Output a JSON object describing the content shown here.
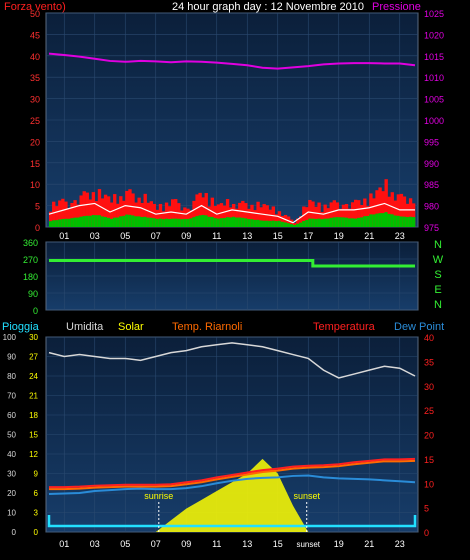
{
  "header": {
    "left_label": "Forza vento)",
    "title": "24 hour graph day : 12 Novembre 2010",
    "right_label": "Pressione"
  },
  "colors": {
    "bg": "#000000",
    "plot_bg_top": "#0b1f3a",
    "plot_bg_bottom": "#163a66",
    "grid": "#2b4a70",
    "wind_red": "#ff1010",
    "wind_green": "#00c000",
    "wind_white": "#ffffff",
    "pressure": "#e000e0",
    "direction": "#33ee33",
    "humidity": "#d8d8d8",
    "solar": "#ffff00",
    "temp_riarnoli": "#ff6a00",
    "temperatura": "#ff2020",
    "dew_point": "#2a8cd8",
    "pioggia": "#22e0ff"
  },
  "time_ticks": [
    "01",
    "03",
    "05",
    "07",
    "09",
    "11",
    "13",
    "15",
    "17",
    "19",
    "21",
    "23"
  ],
  "time_ticks_bottom": [
    "01",
    "03",
    "05",
    "07",
    "09",
    "11",
    "13",
    "15",
    "sunset",
    "19",
    "21",
    "23"
  ],
  "chart_data": [
    {
      "id": "wind_pressure",
      "type": "area",
      "left_axis": {
        "ylim": [
          0,
          50
        ],
        "ticks": [
          "0",
          "5",
          "10",
          "15",
          "20",
          "25",
          "30",
          "35",
          "40",
          "45",
          "50"
        ]
      },
      "right_axis": {
        "ylim": [
          975,
          1025
        ],
        "ticks": [
          "975",
          "980",
          "985",
          "990",
          "995",
          "1000",
          "1005",
          "1010",
          "1015",
          "1020",
          "1025"
        ]
      },
      "x": [
        0,
        1,
        2,
        3,
        4,
        5,
        6,
        7,
        8,
        9,
        10,
        11,
        12,
        13,
        14,
        15,
        16,
        17,
        18,
        19,
        20,
        21,
        22,
        23,
        24
      ],
      "series": [
        {
          "name": "Pressione",
          "axis": "right",
          "values": [
            1015.5,
            1015.2,
            1014.8,
            1014.3,
            1013.8,
            1013.6,
            1013.8,
            1013.7,
            1013.5,
            1013.7,
            1013.6,
            1013.4,
            1013.1,
            1012.8,
            1012.2,
            1012.0,
            1012.3,
            1012.6,
            1013.0,
            1013.2,
            1013.3,
            1013.3,
            1013.2,
            1013.2,
            1012.8
          ]
        },
        {
          "name": "Forza vento)",
          "axis": "left",
          "values": [
            6.5,
            7.5,
            9,
            10,
            7.5,
            10,
            8.5,
            5.5,
            7.5,
            6,
            10,
            6,
            7,
            6.5,
            6,
            4.5,
            1.5,
            7,
            6,
            7.5,
            7,
            8.5,
            11.5,
            8.5,
            8.5
          ]
        },
        {
          "values": [
            3,
            4,
            5,
            5.5,
            3.5,
            5,
            4.5,
            3,
            3.5,
            3,
            5,
            3,
            4,
            3.5,
            3,
            2.5,
            1,
            3.5,
            3,
            4,
            4,
            4.5,
            5.5,
            4,
            4
          ]
        },
        {
          "values": [
            1.5,
            2,
            2.5,
            3,
            2,
            3,
            2.5,
            2,
            2,
            2,
            3,
            2,
            2.5,
            2,
            1.5,
            1.5,
            0.5,
            2,
            2,
            2.5,
            2,
            3,
            3.5,
            2.5,
            2.5
          ]
        }
      ]
    },
    {
      "id": "direction",
      "type": "line",
      "ylim": [
        0,
        360
      ],
      "ticks": [
        "0",
        "90",
        "180",
        "270",
        "360"
      ],
      "compass": [
        "N",
        "W",
        "S",
        "E",
        "N"
      ],
      "x": [
        0,
        17.3,
        17.3,
        24
      ],
      "values": [
        262,
        262,
        233,
        233
      ]
    },
    {
      "id": "weather",
      "type": "line",
      "legend": [
        "Pioggia",
        "Umidita",
        "Solar",
        "Temp. Riarnoli",
        "Temperatura",
        "Dew Point"
      ],
      "left_axis_rain": {
        "ylim": [
          0,
          100
        ],
        "ticks": [
          "0",
          "10",
          "20",
          "30",
          "40",
          "50",
          "60",
          "70",
          "80",
          "90",
          "100"
        ]
      },
      "left_axis_hum": {
        "ylim": [
          0,
          30
        ],
        "ticks": [
          "0",
          "3",
          "6",
          "9",
          "12",
          "15",
          "18",
          "21",
          "24",
          "27",
          "30"
        ]
      },
      "right_axis": {
        "ylim": [
          0,
          40
        ],
        "ticks": [
          "0",
          "5",
          "10",
          "15",
          "20",
          "25",
          "30",
          "35",
          "40"
        ]
      },
      "annotations": {
        "sunrise": "sunrise",
        "sunset": "sunset",
        "sunrise_hour": 7.2,
        "sunset_hour": 16.9
      },
      "x": [
        0,
        1,
        2,
        3,
        4,
        5,
        6,
        7,
        8,
        9,
        10,
        11,
        12,
        13,
        14,
        15,
        16,
        17,
        18,
        19,
        20,
        21,
        22,
        23,
        24
      ],
      "series": [
        {
          "name": "Umidita",
          "values": [
            92,
            90,
            91,
            90,
            89,
            89,
            88,
            90,
            92,
            93,
            95,
            96,
            97,
            96,
            95,
            93,
            91,
            89,
            83,
            79,
            81,
            83,
            85,
            84,
            80
          ]
        },
        {
          "name": "Temperatura",
          "values": [
            9.2,
            9.2,
            9.3,
            9.5,
            9.6,
            9.7,
            9.7,
            9.7,
            9.8,
            10.2,
            10.6,
            11.2,
            11.7,
            12.2,
            12.7,
            13.0,
            13.4,
            13.6,
            13.7,
            13.9,
            14.3,
            14.6,
            14.9,
            14.9,
            15.0
          ]
        },
        {
          "name": "Temp. Riarnoli",
          "values": [
            8.8,
            8.8,
            8.9,
            9.1,
            9.2,
            9.3,
            9.3,
            9.3,
            9.4,
            9.8,
            10.2,
            10.8,
            11.3,
            11.8,
            12.3,
            12.6,
            13.0,
            13.2,
            13.3,
            13.5,
            13.9,
            14.2,
            14.5,
            14.5,
            14.6
          ]
        },
        {
          "name": "Dew Point",
          "values": [
            7.8,
            7.9,
            8.0,
            8.4,
            8.6,
            8.8,
            8.9,
            8.8,
            8.8,
            9.0,
            9.4,
            10.0,
            10.5,
            10.9,
            11.1,
            11.2,
            11.5,
            11.6,
            11.2,
            11.0,
            10.9,
            10.8,
            10.6,
            10.4,
            10.2
          ]
        },
        {
          "name": "Solar",
          "values": [
            0,
            0,
            0,
            0,
            0,
            0,
            0,
            0,
            4,
            8,
            11,
            14,
            17,
            20,
            25,
            20,
            9,
            0,
            0,
            0,
            0,
            0,
            0,
            0,
            0
          ]
        },
        {
          "name": "Pioggia",
          "values": [
            0,
            0,
            0,
            0,
            0,
            0,
            0,
            0,
            0,
            0,
            0,
            0,
            0,
            0,
            0,
            0,
            0,
            0,
            0,
            0,
            0,
            0,
            0,
            0,
            0
          ]
        }
      ]
    }
  ]
}
